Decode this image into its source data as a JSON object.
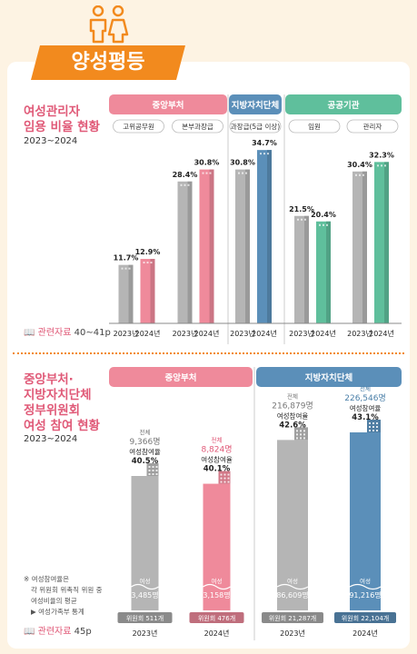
{
  "header": {
    "title": "양성평등"
  },
  "section1": {
    "title_lines": [
      "여성관리자",
      "임용 비율 현황"
    ],
    "period": "2023~2024",
    "reference": {
      "label": "관련자료",
      "pages": "40~41p"
    }
  },
  "section2": {
    "title_lines": [
      "중앙부처·",
      "지방자치단체",
      "정부위원회",
      "여성 참여 현황"
    ],
    "period": "2023~2024",
    "reference": {
      "label": "관련자료",
      "pages": "45p"
    },
    "notes": [
      "※ 여성참여율은",
      "각 위원회 위촉직 위원 중",
      "여성비율의 평균",
      "▶ 여성가족부 통계"
    ]
  },
  "chart_data": [
    {
      "type": "bar",
      "title": "",
      "groups": [
        {
          "name": "중앙부처",
          "color": "#ef8a9b",
          "categories": [
            {
              "name": "고위공무원",
              "values": {
                "2023년": 11.7,
                "2024년": 12.9
              }
            },
            {
              "name": "본부과장급",
              "values": {
                "2023년": 28.4,
                "2024년": 30.8
              }
            }
          ]
        },
        {
          "name": "지방자치단체",
          "color": "#5b8fb9",
          "categories": [
            {
              "name": "과장급(5급 이상)",
              "values": {
                "2023년": 30.8,
                "2024년": 34.7
              }
            }
          ]
        },
        {
          "name": "공공기관",
          "color": "#5fbf9c",
          "categories": [
            {
              "name": "임원",
              "values": {
                "2023년": 21.5,
                "2024년": 20.4
              }
            },
            {
              "name": "관리자",
              "values": {
                "2023년": 30.4,
                "2024년": 32.3
              }
            }
          ]
        }
      ],
      "years": [
        "2023년",
        "2024년"
      ],
      "unit": "%",
      "ylim": [
        0,
        40
      ]
    },
    {
      "type": "bar",
      "title": "",
      "groups": [
        {
          "name": "중앙부처",
          "color": "#ef8a9b",
          "bars": [
            {
              "year": "2023년",
              "total_label": "전체",
              "total": "9,366명",
              "rate_label": "여성참여율",
              "rate": "40.5%",
              "women_label": "여성",
              "women": "3,485명",
              "committees": "위원회 511개",
              "rate_value": 40.5,
              "total_value": 9366
            },
            {
              "year": "2024년",
              "total_label": "전체",
              "total": "8,824명",
              "rate_label": "여성참여율",
              "rate": "40.1%",
              "women_label": "여성",
              "women": "3,158명",
              "committees": "위원회 476개",
              "rate_value": 40.1,
              "total_value": 8824
            }
          ]
        },
        {
          "name": "지방자치단체",
          "color": "#5b8fb9",
          "bars": [
            {
              "year": "2023년",
              "total_label": "전체",
              "total": "216,879명",
              "rate_label": "여성참여율",
              "rate": "42.6%",
              "women_label": "여성",
              "women": "86,609명",
              "committees": "위원회 21,287개",
              "rate_value": 42.6,
              "total_value": 216879
            },
            {
              "year": "2024년",
              "total_label": "전체",
              "total": "226,546명",
              "rate_label": "여성참여율",
              "rate": "43.1%",
              "women_label": "여성",
              "women": "91,216명",
              "committees": "위원회 22,104개",
              "rate_value": 43.1,
              "total_value": 226546
            }
          ]
        }
      ]
    }
  ]
}
